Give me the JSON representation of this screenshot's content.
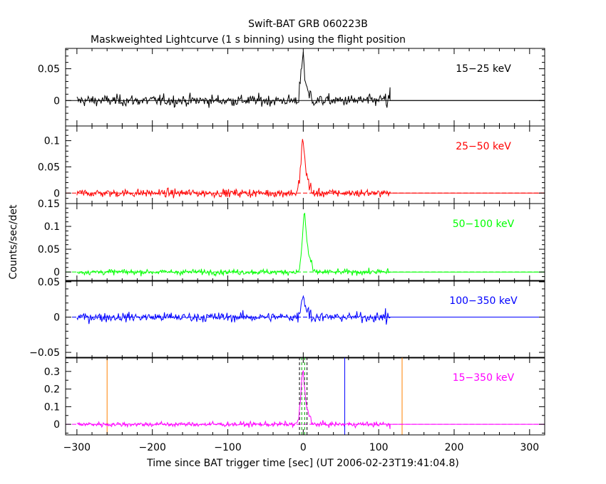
{
  "title": "Swift-BAT GRB 060223B",
  "subtitle": "Maskweighted Lightcurve (1 s binning) using the flight position",
  "ylabel": "Counts/sec/det",
  "chart_data": {
    "type": "line",
    "title": "Swift-BAT GRB 060223B",
    "subtitle": "Maskweighted Lightcurve (1 s binning) using the flight position",
    "xlabel": "Time since BAT trigger time [sec] (UT 2006-02-23T19:41:04.8)",
    "ylabel": "Counts/sec/det",
    "xlim": [
      -315,
      320
    ],
    "x_ticks": [
      -300,
      -200,
      -100,
      0,
      100,
      200,
      300
    ],
    "data_range_s": [
      -300,
      115
    ],
    "grid": false,
    "panels": [
      {
        "name": "15-25 keV",
        "label": "15−25 keV",
        "color": "#000000",
        "ylim": [
          -0.04,
          0.082
        ],
        "yticks": [
          0,
          0.05
        ],
        "ytick_labels": [
          "0",
          "0.05"
        ],
        "noise_sd": 0.0075,
        "peak": {
          "t": 0,
          "value": 0.065
        },
        "tail_noise_sd": 0.015
      },
      {
        "name": "25-50 keV",
        "label": "25−50 keV",
        "color": "#ff0000",
        "ylim": [
          -0.02,
          0.128
        ],
        "yticks": [
          0,
          0.05,
          0.1
        ],
        "ytick_labels": [
          "0",
          "0.05",
          "0.1"
        ],
        "noise_sd": 0.0065,
        "peak": {
          "t": 0,
          "value": 0.1
        },
        "tail_noise_sd": 0.01
      },
      {
        "name": "50-100 keV",
        "label": "50−100 keV",
        "color": "#00ff00",
        "ylim": [
          -0.02,
          0.15
        ],
        "yticks": [
          0,
          0.05,
          0.1,
          0.15
        ],
        "ytick_labels": [
          "0",
          "0.05",
          "0.1",
          "0.15"
        ],
        "noise_sd": 0.005,
        "peak": {
          "t": 2,
          "value": 0.13
        },
        "tail_noise_sd": 0.009
      },
      {
        "name": "100-350 keV",
        "label": "100−350 keV",
        "color": "#0000ff",
        "ylim": [
          -0.058,
          0.052
        ],
        "yticks": [
          -0.05,
          0,
          0.05
        ],
        "ytick_labels": [
          "−0.05",
          "0",
          "0.05"
        ],
        "noise_sd": 0.0055,
        "peak": {
          "t": 0,
          "value": 0.032
        },
        "tail_noise_sd": 0.012
      },
      {
        "name": "15-350 keV",
        "label": "15−350 keV",
        "color": "#ff00ff",
        "ylim": [
          -0.06,
          0.38
        ],
        "yticks": [
          0,
          0.1,
          0.2,
          0.3
        ],
        "ytick_labels": [
          "0",
          "0.1",
          "0.2",
          "0.3"
        ],
        "noise_sd": 0.012,
        "peak": {
          "t": 0,
          "value": 0.3
        },
        "tail_noise_sd": 0.02,
        "markers": [
          {
            "t": -260,
            "color": "#ff8000",
            "style": "solid"
          },
          {
            "t": -5,
            "color": "#000000",
            "style": "dashed"
          },
          {
            "t": 5,
            "color": "#000000",
            "style": "dashed"
          },
          {
            "t": -2,
            "color": "#00aa00",
            "style": "dashed"
          },
          {
            "t": 2,
            "color": "#00aa00",
            "style": "dashed"
          },
          {
            "t": 55,
            "color": "#0000ff",
            "style": "solid"
          },
          {
            "t": 131,
            "color": "#ff8000",
            "style": "solid"
          }
        ]
      }
    ]
  }
}
